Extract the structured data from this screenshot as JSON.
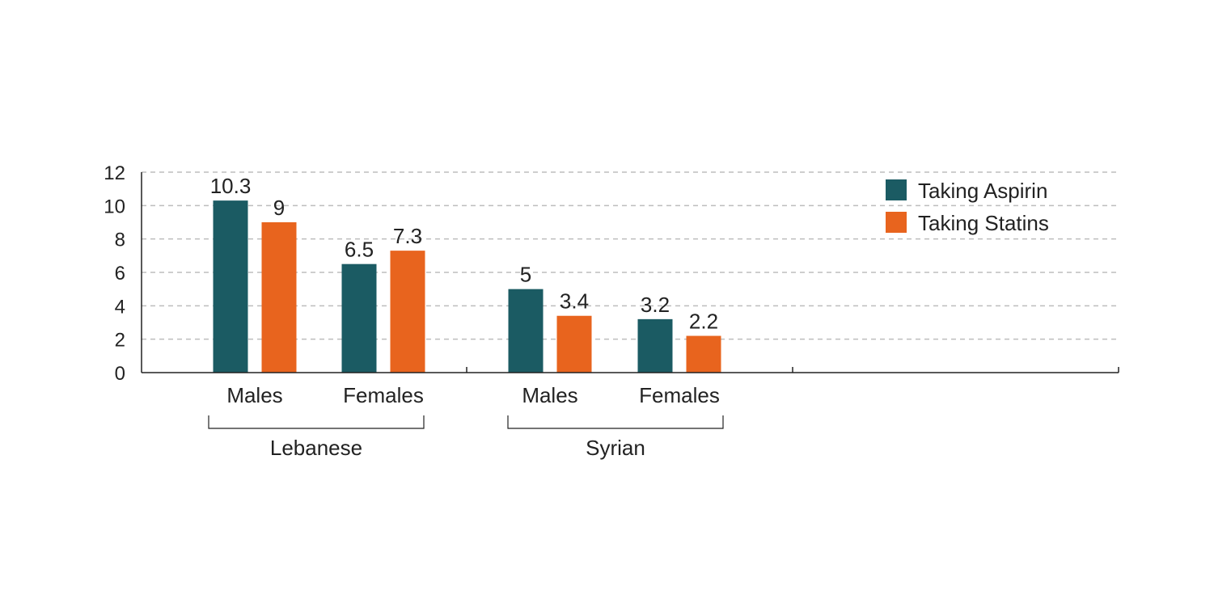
{
  "chart_data": {
    "type": "bar",
    "title": "",
    "xlabel": "",
    "ylabel": "",
    "ylim": [
      0,
      12
    ],
    "yticks": [
      0,
      2,
      4,
      6,
      8,
      10,
      12
    ],
    "grid": true,
    "legend_position": "top-right",
    "groups": [
      {
        "name": "Lebanese",
        "categories": [
          "Males",
          "Females"
        ]
      },
      {
        "name": "Syrian",
        "categories": [
          "Males",
          "Females"
        ]
      }
    ],
    "categories": [
      "Males",
      "Females",
      "Males",
      "Females"
    ],
    "series": [
      {
        "name": "Taking Aspirin",
        "color": "#1b5b63",
        "values": [
          10.3,
          6.5,
          5,
          3.2
        ],
        "labels": [
          "10.3",
          "6.5",
          "5",
          "3.2"
        ]
      },
      {
        "name": "Taking Statins",
        "color": "#e8641e",
        "values": [
          9,
          7.3,
          3.4,
          2.2
        ],
        "labels": [
          "9",
          "7.3",
          "3.4",
          "2.2"
        ]
      }
    ]
  }
}
